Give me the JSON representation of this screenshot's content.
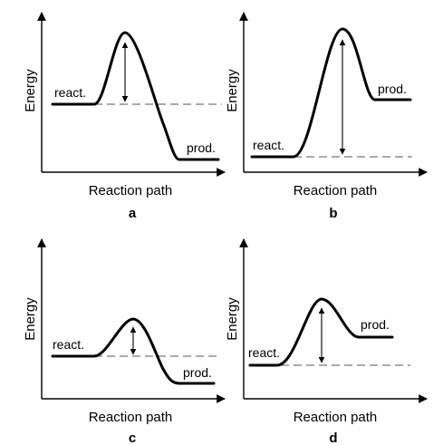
{
  "diagrams": [
    {
      "panel_letter": "a",
      "y_axis": "Energy",
      "x_axis": "Reaction path",
      "reactant_label": "react.",
      "product_label": "prod."
    },
    {
      "panel_letter": "b",
      "y_axis": "Energy",
      "x_axis": "Reaction path",
      "reactant_label": "react.",
      "product_label": "prod."
    },
    {
      "panel_letter": "c",
      "y_axis": "Energy",
      "x_axis": "Reaction path",
      "reactant_label": "react.",
      "product_label": "prod."
    },
    {
      "panel_letter": "d",
      "y_axis": "Energy",
      "x_axis": "Reaction path",
      "reactant_label": "react.",
      "product_label": "prod."
    }
  ]
}
